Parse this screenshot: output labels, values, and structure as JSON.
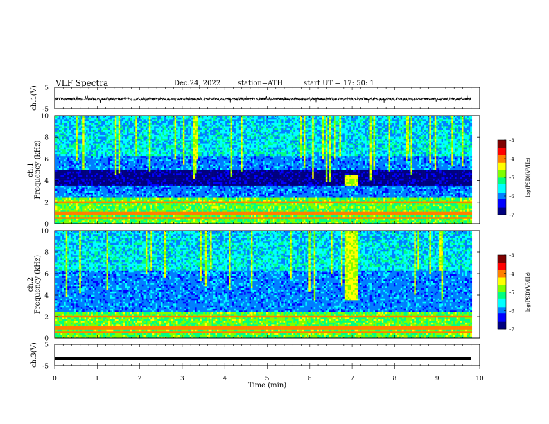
{
  "header": {
    "title": "VLF  Spectra",
    "date": "Dec.24, 2022",
    "station": "station=ATH",
    "start": "start  UT  =    17: 50: 1"
  },
  "colors": {
    "waveform": "#000000",
    "axis": "#000000",
    "colormap": [
      "#00007f",
      "#0000ff",
      "#007fff",
      "#00ffff",
      "#00ff7f",
      "#7fff00",
      "#ffff00",
      "#ff7f00",
      "#ff0000",
      "#7f0000"
    ]
  },
  "chart_data": [
    {
      "type": "line",
      "ylabel": "ch.1(V)",
      "ylim": [
        -5,
        5
      ],
      "yticks": [
        "5",
        "-5"
      ],
      "xlim": [
        0,
        10
      ],
      "description": "noisy near-zero waveform with spikes",
      "baseline": -0.5
    },
    {
      "type": "heatmap",
      "ylabel_top": "ch.1",
      "ylabel": "Frequency  (kHz)",
      "ylim": [
        0,
        10
      ],
      "yticks": [
        "0",
        "2",
        "4",
        "6",
        "8",
        "10"
      ],
      "xlim": [
        0,
        10
      ],
      "colorbar_label": "log(PSD)(V²/Hz)",
      "colorbar_ticks": [
        "-3",
        "-4",
        "-5",
        "-6",
        "-7"
      ],
      "colorbar_range": [
        -7,
        -3
      ],
      "event": {
        "t_start": 6.8,
        "t_end": 7.1,
        "f_low": 3.5,
        "f_high": 4.5
      }
    },
    {
      "type": "heatmap",
      "ylabel_top": "ch.2",
      "ylabel": "Frequency  (kHz)",
      "ylim": [
        0,
        10
      ],
      "yticks": [
        "0",
        "2",
        "4",
        "6",
        "8",
        "10"
      ],
      "xlim": [
        0,
        10
      ],
      "colorbar_label": "log(PSD)(V²/Hz)",
      "colorbar_ticks": [
        "-3",
        "-4",
        "-5",
        "-6",
        "-7"
      ],
      "colorbar_range": [
        -7,
        -3
      ],
      "event": {
        "t_start": 6.8,
        "t_end": 7.1,
        "f_low": 3.5,
        "f_high": 10
      }
    },
    {
      "type": "line",
      "ylabel": "ch.3(V)",
      "ylim": [
        -5,
        5
      ],
      "yticks": [
        "5",
        "-5"
      ],
      "xlim": [
        0,
        10
      ],
      "xlabel": "Time  (min)",
      "xticks": [
        "0",
        "1",
        "2",
        "3",
        "4",
        "5",
        "6",
        "7",
        "8",
        "9",
        "10"
      ],
      "baseline": -1.5
    }
  ]
}
